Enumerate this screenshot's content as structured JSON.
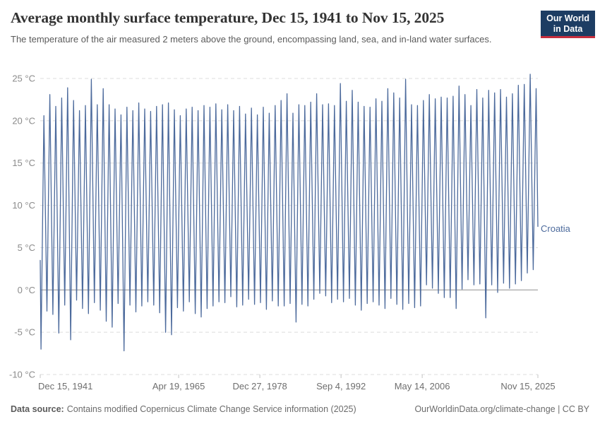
{
  "logo": {
    "line1": "Our World",
    "line2": "in Data"
  },
  "colors": {
    "line": "#4c6a9c",
    "entity_label": "#4c6a9c",
    "grid": "#dcdcdc",
    "zero_line": "#8f8f8f",
    "tick_mark": "#c4c4c4",
    "y_axis_text": "#8b8b8b",
    "x_axis_text": "#6e6e6e",
    "logo_bg": "#1d3d63",
    "logo_accent": "#c72e3d"
  },
  "chart_data": {
    "type": "line",
    "title": "Average monthly surface temperature, Dec 15, 1941 to Nov 15, 2025",
    "subtitle": "The temperature of the air measured 2 meters above the ground, encompassing land, sea, and in-land water surfaces.",
    "entity_label": "Croatia",
    "unit": "°C",
    "ylim": [
      -10,
      25
    ],
    "yticks": [
      25,
      20,
      15,
      10,
      5,
      0,
      -5,
      -10
    ],
    "ytick_suffix": " °C",
    "x_domain": [
      1941.956,
      2025.871
    ],
    "xticks": [
      {
        "t": 1941.956,
        "label": "Dec 15, 1941"
      },
      {
        "t": 1965.296,
        "label": "Apr 19, 1965"
      },
      {
        "t": 1978.989,
        "label": "Dec 27, 1978"
      },
      {
        "t": 1992.677,
        "label": "Sep 4, 1992"
      },
      {
        "t": 2006.364,
        "label": "May 14, 2006"
      },
      {
        "t": 2025.871,
        "label": "Nov 15, 2025"
      }
    ],
    "grid": {
      "horizontal": true,
      "style": "dashed",
      "zero_line_solid": true
    },
    "series": [
      {
        "name": "Croatia",
        "color": "#4c6a9c",
        "start_point": {
          "t": 1941.956,
          "value": 3.5
        },
        "end_point": {
          "t": 2025.871,
          "value": 7.5
        },
        "yearly_extremes_note": "per year: [year, winter_min_degC, summer_max_degC]; monthly series oscillates seasonally between these extremes",
        "yearly_extremes": [
          [
            1942,
            -7.0,
            20.6
          ],
          [
            1943,
            -2.5,
            23.1
          ],
          [
            1944,
            -2.9,
            21.7
          ],
          [
            1945,
            -5.1,
            22.7
          ],
          [
            1946,
            -1.8,
            23.9
          ],
          [
            1947,
            -5.9,
            22.4
          ],
          [
            1948,
            -1.2,
            21.2
          ],
          [
            1949,
            -2.2,
            21.8
          ],
          [
            1950,
            -2.8,
            24.9
          ],
          [
            1951,
            -1.5,
            21.9
          ],
          [
            1952,
            -2.4,
            23.8
          ],
          [
            1953,
            -3.7,
            21.9
          ],
          [
            1954,
            -4.4,
            21.4
          ],
          [
            1955,
            -1.6,
            20.7
          ],
          [
            1956,
            -7.2,
            21.6
          ],
          [
            1957,
            -1.8,
            21.2
          ],
          [
            1958,
            -2.6,
            22.1
          ],
          [
            1959,
            -1.9,
            21.4
          ],
          [
            1960,
            -1.4,
            21.1
          ],
          [
            1961,
            -1.8,
            21.7
          ],
          [
            1962,
            -2.7,
            21.9
          ],
          [
            1963,
            -5.0,
            22.1
          ],
          [
            1964,
            -5.3,
            21.3
          ],
          [
            1965,
            -2.1,
            20.6
          ],
          [
            1966,
            -2.5,
            21.4
          ],
          [
            1967,
            -1.4,
            21.6
          ],
          [
            1968,
            -2.8,
            21.2
          ],
          [
            1969,
            -3.2,
            21.8
          ],
          [
            1970,
            -2.2,
            21.6
          ],
          [
            1971,
            -1.9,
            22.0
          ],
          [
            1972,
            -1.4,
            21.3
          ],
          [
            1973,
            -1.5,
            21.9
          ],
          [
            1974,
            -0.8,
            21.2
          ],
          [
            1975,
            -2.0,
            21.7
          ],
          [
            1976,
            -1.8,
            20.8
          ],
          [
            1977,
            -1.1,
            21.5
          ],
          [
            1978,
            -1.7,
            20.7
          ],
          [
            1979,
            -1.5,
            21.6
          ],
          [
            1980,
            -2.3,
            20.9
          ],
          [
            1981,
            -1.3,
            21.8
          ],
          [
            1982,
            -1.9,
            22.4
          ],
          [
            1983,
            -1.9,
            23.2
          ],
          [
            1984,
            -1.6,
            20.9
          ],
          [
            1985,
            -3.8,
            21.9
          ],
          [
            1986,
            -1.7,
            21.8
          ],
          [
            1987,
            -1.9,
            22.2
          ],
          [
            1988,
            -1.1,
            23.2
          ],
          [
            1989,
            -0.4,
            21.9
          ],
          [
            1990,
            -0.7,
            22.0
          ],
          [
            1991,
            -1.5,
            21.8
          ],
          [
            1992,
            -1.1,
            24.4
          ],
          [
            1993,
            -1.4,
            22.3
          ],
          [
            1994,
            -1.0,
            23.6
          ],
          [
            1995,
            -1.8,
            22.2
          ],
          [
            1996,
            -2.4,
            21.7
          ],
          [
            1997,
            -1.6,
            21.6
          ],
          [
            1998,
            -1.4,
            22.6
          ],
          [
            1999,
            -1.8,
            22.3
          ],
          [
            2000,
            -2.2,
            23.8
          ],
          [
            2001,
            -1.0,
            23.3
          ],
          [
            2002,
            -1.7,
            22.7
          ],
          [
            2003,
            -2.3,
            24.9
          ],
          [
            2004,
            -1.6,
            21.9
          ],
          [
            2005,
            -2.1,
            21.8
          ],
          [
            2006,
            -1.9,
            22.4
          ],
          [
            2007,
            0.6,
            23.1
          ],
          [
            2008,
            0.2,
            22.6
          ],
          [
            2009,
            -0.4,
            22.8
          ],
          [
            2010,
            -0.9,
            22.7
          ],
          [
            2011,
            -0.9,
            22.9
          ],
          [
            2012,
            -2.2,
            24.1
          ],
          [
            2013,
            0.1,
            23.1
          ],
          [
            2014,
            1.2,
            21.8
          ],
          [
            2015,
            0.6,
            23.7
          ],
          [
            2016,
            0.7,
            22.7
          ],
          [
            2017,
            -3.3,
            23.6
          ],
          [
            2018,
            0.6,
            23.3
          ],
          [
            2019,
            -0.3,
            23.7
          ],
          [
            2020,
            0.8,
            22.8
          ],
          [
            2021,
            0.2,
            23.2
          ],
          [
            2022,
            0.7,
            24.2
          ],
          [
            2023,
            1.1,
            24.3
          ],
          [
            2024,
            2.0,
            25.5
          ],
          [
            2025,
            2.4,
            23.8
          ]
        ]
      }
    ]
  },
  "footer": {
    "source_label": "Data source:",
    "source_text": "Contains modified Copernicus Climate Change Service information (2025)",
    "link_text": "OurWorldinData.org/climate-change | CC BY"
  }
}
